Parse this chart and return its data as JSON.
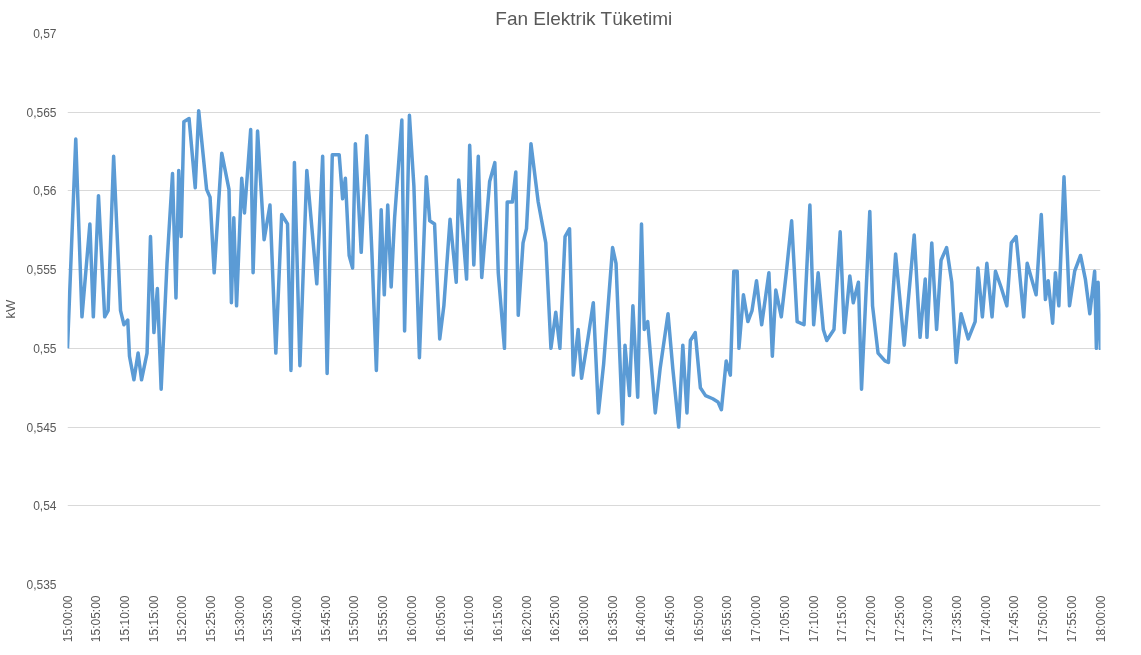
{
  "chart_data": {
    "type": "line",
    "title": "Fan Elektrik Tüketimi",
    "ylabel": "kW",
    "grid": "y",
    "line_style": "solid",
    "xlim": [
      15.0,
      18.0
    ],
    "xticks": [
      {
        "value": 15.0,
        "label": "15:00:00"
      },
      {
        "value": 15.0833,
        "label": "15:05:00"
      },
      {
        "value": 15.1667,
        "label": "15:10:00"
      },
      {
        "value": 15.25,
        "label": "15:15:00"
      },
      {
        "value": 15.3333,
        "label": "15:20:00"
      },
      {
        "value": 15.4167,
        "label": "15:25:00"
      },
      {
        "value": 15.5,
        "label": "15:30:00"
      },
      {
        "value": 15.5833,
        "label": "15:35:00"
      },
      {
        "value": 15.6667,
        "label": "15:40:00"
      },
      {
        "value": 15.75,
        "label": "15:45:00"
      },
      {
        "value": 15.8333,
        "label": "15:50:00"
      },
      {
        "value": 15.9167,
        "label": "15:55:00"
      },
      {
        "value": 16.0,
        "label": "16:00:00"
      },
      {
        "value": 16.0833,
        "label": "16:05:00"
      },
      {
        "value": 16.1667,
        "label": "16:10:00"
      },
      {
        "value": 16.25,
        "label": "16:15:00"
      },
      {
        "value": 16.3333,
        "label": "16:20:00"
      },
      {
        "value": 16.4167,
        "label": "16:25:00"
      },
      {
        "value": 16.5,
        "label": "16:30:00"
      },
      {
        "value": 16.5833,
        "label": "16:35:00"
      },
      {
        "value": 16.6667,
        "label": "16:40:00"
      },
      {
        "value": 16.75,
        "label": "16:45:00"
      },
      {
        "value": 16.8333,
        "label": "16:50:00"
      },
      {
        "value": 16.9167,
        "label": "16:55:00"
      },
      {
        "value": 17.0,
        "label": "17:00:00"
      },
      {
        "value": 17.0833,
        "label": "17:05:00"
      },
      {
        "value": 17.1667,
        "label": "17:10:00"
      },
      {
        "value": 17.25,
        "label": "17:15:00"
      },
      {
        "value": 17.3333,
        "label": "17:20:00"
      },
      {
        "value": 17.4167,
        "label": "17:25:00"
      },
      {
        "value": 17.5,
        "label": "17:30:00"
      },
      {
        "value": 17.5833,
        "label": "17:35:00"
      },
      {
        "value": 17.6667,
        "label": "17:40:00"
      },
      {
        "value": 17.75,
        "label": "17:45:00"
      },
      {
        "value": 17.8333,
        "label": "17:50:00"
      },
      {
        "value": 17.9167,
        "label": "17:55:00"
      },
      {
        "value": 18.0,
        "label": "18:00:00"
      }
    ],
    "ylim": [
      0.535,
      0.57
    ],
    "yticks": [
      {
        "value": 0.535,
        "label": "0,535"
      },
      {
        "value": 0.54,
        "label": "0,54"
      },
      {
        "value": 0.545,
        "label": "0,545"
      },
      {
        "value": 0.55,
        "label": "0,55"
      },
      {
        "value": 0.555,
        "label": "0,555"
      },
      {
        "value": 0.56,
        "label": "0,56"
      },
      {
        "value": 0.565,
        "label": "0,565"
      },
      {
        "value": 0.57,
        "label": "0,57"
      }
    ],
    "x": [
      15.0,
      15.024,
      15.042,
      15.065,
      15.075,
      15.09,
      15.108,
      15.118,
      15.134,
      15.154,
      15.164,
      15.175,
      15.18,
      15.193,
      15.205,
      15.215,
      15.231,
      15.241,
      15.251,
      15.261,
      15.272,
      15.289,
      15.305,
      15.315,
      15.323,
      15.33,
      15.338,
      15.353,
      15.371,
      15.381,
      15.404,
      15.414,
      15.426,
      15.448,
      15.469,
      15.476,
      15.483,
      15.491,
      15.506,
      15.514,
      15.532,
      15.539,
      15.552,
      15.571,
      15.588,
      15.605,
      15.622,
      15.639,
      15.649,
      15.659,
      15.675,
      15.695,
      15.724,
      15.741,
      15.754,
      15.769,
      15.789,
      15.799,
      15.807,
      15.818,
      15.828,
      15.836,
      15.853,
      15.869,
      15.884,
      15.897,
      15.911,
      15.92,
      15.93,
      15.94,
      15.95,
      15.971,
      15.979,
      15.993,
      16.006,
      16.022,
      16.042,
      16.052,
      16.066,
      16.081,
      16.093,
      16.111,
      16.129,
      16.136,
      16.159,
      16.168,
      16.18,
      16.193,
      16.203,
      16.226,
      16.241,
      16.251,
      16.269,
      16.277,
      16.292,
      16.302,
      16.309,
      16.323,
      16.333,
      16.346,
      16.367,
      16.389,
      16.404,
      16.418,
      16.43,
      16.445,
      16.458,
      16.469,
      16.483,
      16.493,
      16.512,
      16.527,
      16.542,
      16.557,
      16.583,
      16.593,
      16.612,
      16.619,
      16.632,
      16.642,
      16.656,
      16.667,
      16.675,
      16.685,
      16.707,
      16.721,
      16.744,
      16.758,
      16.775,
      16.787,
      16.799,
      16.809,
      16.823,
      16.838,
      16.853,
      16.874,
      16.889,
      16.899,
      16.913,
      16.925,
      16.935,
      16.945,
      16.95,
      16.963,
      16.976,
      16.988,
      17.001,
      17.016,
      17.037,
      17.047,
      17.057,
      17.073,
      17.088,
      17.103,
      17.119,
      17.139,
      17.156,
      17.167,
      17.18,
      17.195,
      17.205,
      17.226,
      17.244,
      17.256,
      17.272,
      17.282,
      17.297,
      17.306,
      17.33,
      17.338,
      17.354,
      17.374,
      17.384,
      17.405,
      17.43,
      17.459,
      17.476,
      17.491,
      17.496,
      17.51,
      17.524,
      17.537,
      17.553,
      17.568,
      17.581,
      17.595,
      17.616,
      17.636,
      17.644,
      17.657,
      17.67,
      17.685,
      17.695,
      17.711,
      17.728,
      17.741,
      17.755,
      17.777,
      17.787,
      17.813,
      17.828,
      17.84,
      17.848,
      17.861,
      17.869,
      17.879,
      17.894,
      17.91,
      17.925,
      17.942,
      17.956,
      17.969,
      17.983,
      17.988,
      17.993,
      18.0
    ],
    "series": [
      {
        "color": "#5b9bd5",
        "values": [
          0.55,
          0.5633,
          0.552,
          0.5579,
          0.552,
          0.5597,
          0.552,
          0.5524,
          0.5622,
          0.5524,
          0.5515,
          0.5518,
          0.5495,
          0.548,
          0.5497,
          0.548,
          0.5497,
          0.5571,
          0.551,
          0.5538,
          0.5474,
          0.5554,
          0.5611,
          0.5532,
          0.5613,
          0.5571,
          0.5644,
          0.5646,
          0.5602,
          0.5651,
          0.5601,
          0.5596,
          0.5548,
          0.5624,
          0.5601,
          0.5529,
          0.5583,
          0.5527,
          0.5608,
          0.5586,
          0.5639,
          0.5548,
          0.5638,
          0.5569,
          0.5591,
          0.5497,
          0.5585,
          0.5579,
          0.5486,
          0.5618,
          0.5489,
          0.5613,
          0.5541,
          0.5622,
          0.5484,
          0.5623,
          0.5623,
          0.5595,
          0.5608,
          0.5559,
          0.5551,
          0.563,
          0.5561,
          0.5635,
          0.5561,
          0.5486,
          0.5588,
          0.5534,
          0.5591,
          0.5539,
          0.5583,
          0.5645,
          0.5511,
          0.5648,
          0.5603,
          0.5494,
          0.5609,
          0.5581,
          0.5579,
          0.5506,
          0.5527,
          0.5582,
          0.5542,
          0.5607,
          0.5544,
          0.5629,
          0.5553,
          0.5622,
          0.5545,
          0.5606,
          0.5618,
          0.5548,
          0.55,
          0.5593,
          0.5593,
          0.5612,
          0.5521,
          0.5567,
          0.5576,
          0.563,
          0.5593,
          0.5567,
          0.55,
          0.5523,
          0.55,
          0.5571,
          0.5576,
          0.5483,
          0.5512,
          0.5481,
          0.5507,
          0.5529,
          0.5459,
          0.549,
          0.5564,
          0.5554,
          0.5452,
          0.5502,
          0.547,
          0.5527,
          0.5469,
          0.5579,
          0.5512,
          0.5517,
          0.5459,
          0.5487,
          0.5522,
          0.5487,
          0.545,
          0.5502,
          0.5459,
          0.5505,
          0.551,
          0.5475,
          0.547,
          0.5468,
          0.5466,
          0.5461,
          0.5492,
          0.5483,
          0.5549,
          0.5549,
          0.55,
          0.5534,
          0.5517,
          0.5524,
          0.5543,
          0.5515,
          0.5548,
          0.5495,
          0.5537,
          0.552,
          0.5549,
          0.5581,
          0.5517,
          0.5515,
          0.5591,
          0.5515,
          0.5548,
          0.5512,
          0.5505,
          0.5512,
          0.5574,
          0.551,
          0.5546,
          0.5529,
          0.5542,
          0.5474,
          0.5587,
          0.5527,
          0.5497,
          0.5492,
          0.5491,
          0.556,
          0.5502,
          0.5572,
          0.5507,
          0.5544,
          0.5507,
          0.5567,
          0.5512,
          0.5556,
          0.5564,
          0.5542,
          0.5491,
          0.5522,
          0.5506,
          0.5517,
          0.5551,
          0.552,
          0.5554,
          0.552,
          0.5549,
          0.5539,
          0.5527,
          0.5567,
          0.5571,
          0.552,
          0.5554,
          0.5534,
          0.5585,
          0.5531,
          0.5543,
          0.5516,
          0.5548,
          0.5527,
          0.5609,
          0.5527,
          0.5549,
          0.5559,
          0.5544,
          0.5522,
          0.5549,
          0.55,
          0.5542,
          0.5499
        ]
      }
    ]
  }
}
